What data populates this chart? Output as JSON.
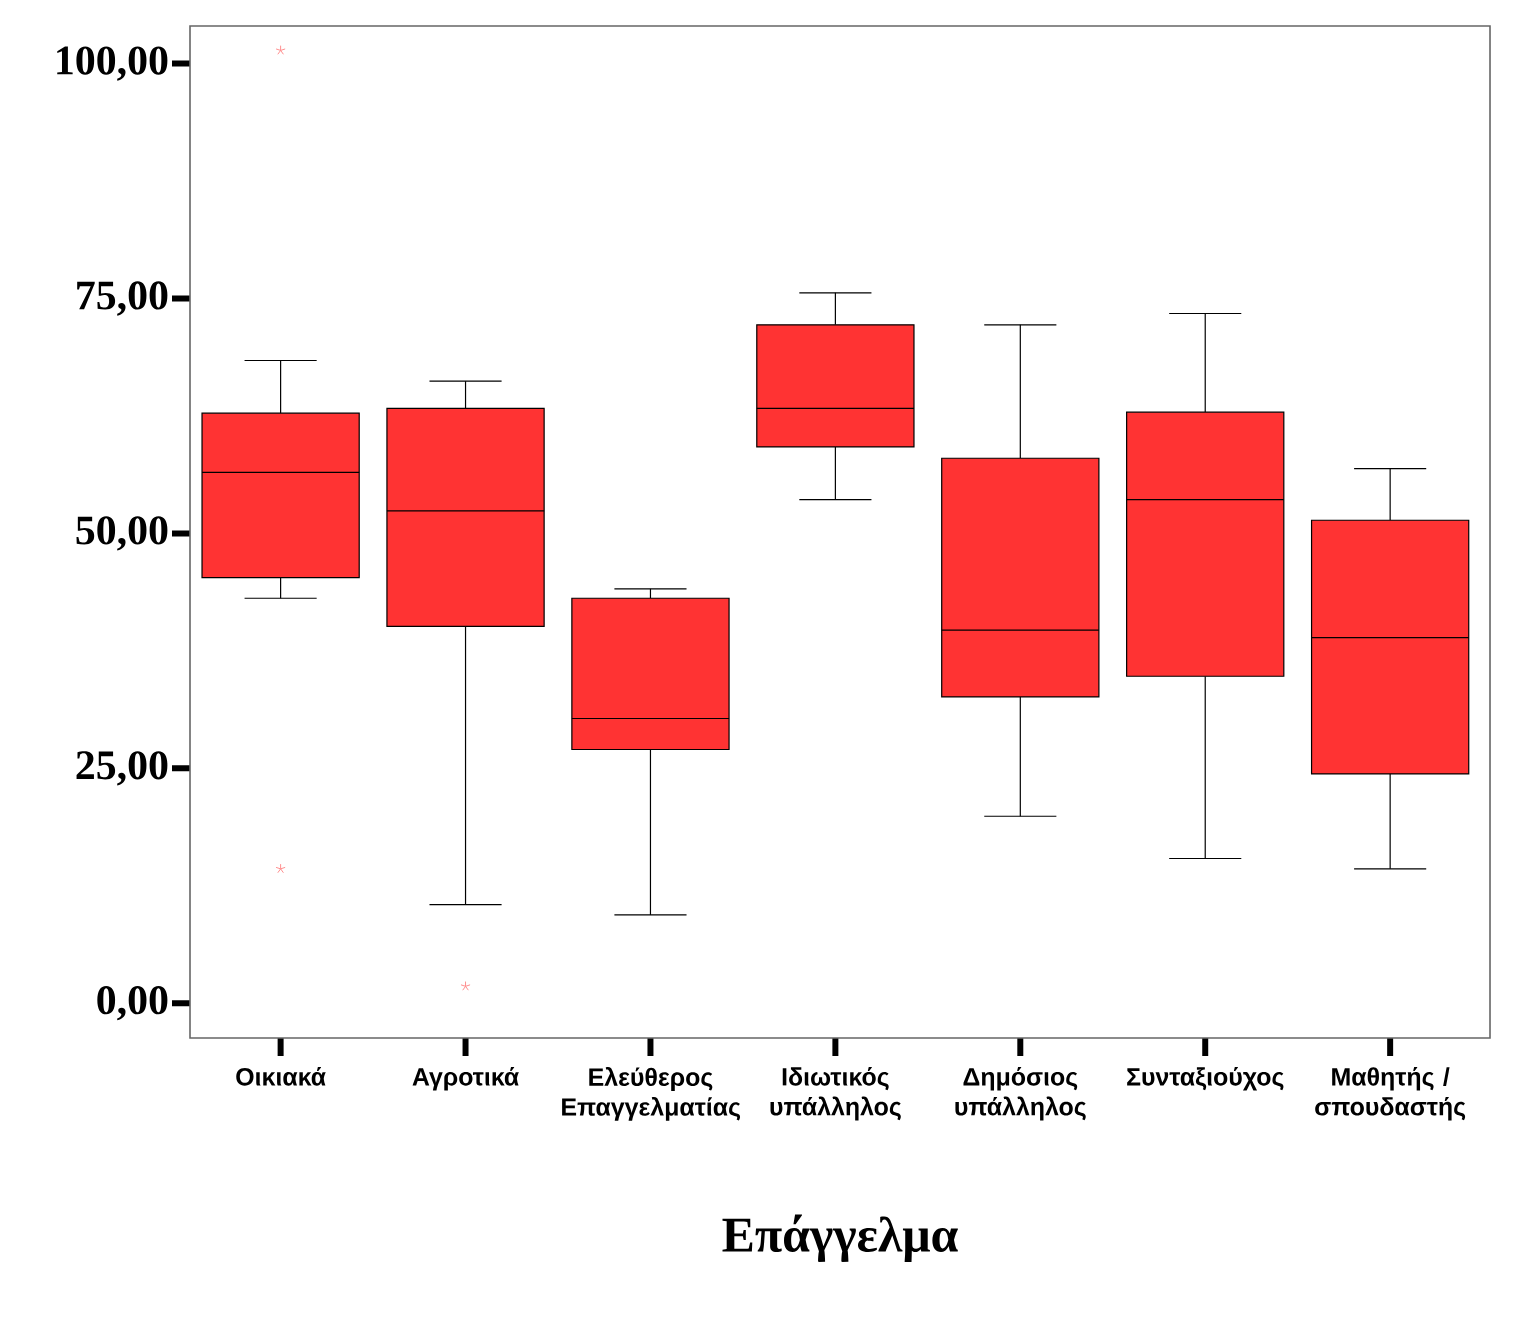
{
  "chart_data": {
    "type": "box",
    "xlabel": "Επάγγελμα",
    "categories": [
      "Οικιακά",
      "Αγροτικά",
      "Ελεύθερος Επαγγελματίας",
      "Ιδιωτικός υπάλληλος",
      "Δημόσιος υπάλληλος",
      "Συνταξιούχος",
      "Μαθητής / σπουδαστής"
    ],
    "color": "#ff3333",
    "boxes": [
      {
        "low": 43.1,
        "q1": 45.3,
        "median": 56.5,
        "q3": 62.8,
        "high": 68.4,
        "outliers": [
          101.4,
          14.3
        ]
      },
      {
        "low": 10.5,
        "q1": 40.1,
        "median": 52.4,
        "q3": 63.3,
        "high": 66.2,
        "outliers": [
          1.8
        ]
      },
      {
        "low": 9.4,
        "q1": 27.0,
        "median": 30.3,
        "q3": 43.1,
        "high": 44.1
      },
      {
        "low": 53.6,
        "q1": 59.2,
        "median": 63.3,
        "q3": 72.2,
        "high": 75.6
      },
      {
        "low": 19.9,
        "q1": 32.6,
        "median": 39.7,
        "q3": 58.0,
        "high": 72.2
      },
      {
        "low": 15.4,
        "q1": 34.8,
        "median": 53.6,
        "q3": 62.9,
        "high": 73.4
      },
      {
        "low": 14.3,
        "q1": 24.4,
        "median": 38.9,
        "q3": 51.4,
        "high": 56.9
      }
    ],
    "ylim": [
      -3.7,
      104
    ],
    "yticks": [
      {
        "value": 0,
        "label": "0,00"
      },
      {
        "value": 25,
        "label": "25,00"
      },
      {
        "value": 50,
        "label": "50,00"
      },
      {
        "value": 75,
        "label": "75,00"
      },
      {
        "value": 100,
        "label": "100,00"
      }
    ],
    "grid": false
  }
}
